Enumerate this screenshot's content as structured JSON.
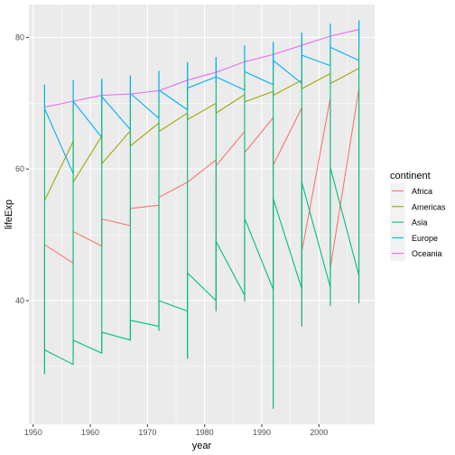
{
  "chart_data": {
    "type": "line",
    "xlabel": "year",
    "ylabel": "lifeExp",
    "xlim": [
      1949.25,
      2009.75
    ],
    "ylim": [
      21.2,
      85.0
    ],
    "x_ticks": [
      1950,
      1960,
      1970,
      1980,
      1990,
      2000
    ],
    "x_tick_labels": [
      "1950",
      "1960",
      "1970",
      "1980",
      "1990",
      "2000"
    ],
    "y_ticks": [
      40,
      60,
      80
    ],
    "y_tick_labels": [
      "40",
      "60",
      "80"
    ],
    "grid": true,
    "background": "#ebebeb",
    "legend": {
      "title": "continent",
      "position": "right",
      "entries": [
        "Africa",
        "Americas",
        "Asia",
        "Europe",
        "Oceania"
      ]
    },
    "series": [
      {
        "name": "Africa",
        "color": "#F8766D",
        "points": [
          [
            1952,
            32
          ],
          [
            1952,
            48.5
          ],
          [
            1957,
            45.7
          ],
          [
            1957,
            50.5
          ],
          [
            1962,
            48.3
          ],
          [
            1962,
            52.4
          ],
          [
            1967,
            51.4
          ],
          [
            1967,
            54
          ],
          [
            1972,
            54.5
          ],
          [
            1972,
            35.4
          ],
          [
            1972,
            55.7
          ],
          [
            1977,
            58
          ],
          [
            1982,
            61.4
          ],
          [
            1982,
            38.4
          ],
          [
            1982,
            60.5
          ],
          [
            1987,
            65.7
          ],
          [
            1987,
            39.9
          ],
          [
            1987,
            62.5
          ],
          [
            1992,
            67.8
          ],
          [
            1992,
            23.6
          ],
          [
            1992,
            60.6
          ],
          [
            1997,
            69.3
          ],
          [
            1997,
            36.1
          ],
          [
            1997,
            47.4
          ],
          [
            2002,
            70.8
          ],
          [
            2002,
            39.2
          ],
          [
            2002,
            45
          ],
          [
            2007,
            72.2
          ],
          [
            2007,
            39.6
          ]
        ]
      },
      {
        "name": "Americas",
        "color": "#A3A500",
        "points": [
          [
            1952,
            55.2
          ],
          [
            1957,
            64.2
          ],
          [
            1957,
            58
          ],
          [
            1962,
            65
          ],
          [
            1962,
            60.8
          ],
          [
            1967,
            65.8
          ],
          [
            1967,
            63.5
          ],
          [
            1972,
            67
          ],
          [
            1972,
            65.7
          ],
          [
            1977,
            68.5
          ],
          [
            1977,
            67.5
          ],
          [
            1982,
            70
          ],
          [
            1982,
            68.5
          ],
          [
            1987,
            71.3
          ],
          [
            1987,
            70.2
          ],
          [
            1992,
            71.8
          ],
          [
            1992,
            71.2
          ],
          [
            1997,
            73.5
          ],
          [
            1997,
            72.2
          ],
          [
            2002,
            74.5
          ],
          [
            2002,
            73
          ],
          [
            2007,
            75.3
          ]
        ]
      },
      {
        "name": "Asia",
        "color": "#00BF7D",
        "points": [
          [
            1952,
            28.8
          ],
          [
            1952,
            32.5
          ],
          [
            1957,
            30.3
          ],
          [
            1957,
            34
          ],
          [
            1962,
            32
          ],
          [
            1962,
            35.2
          ],
          [
            1967,
            34
          ],
          [
            1967,
            37
          ],
          [
            1972,
            36.1
          ],
          [
            1972,
            40
          ],
          [
            1977,
            38.4
          ],
          [
            1977,
            31.2
          ],
          [
            1977,
            44.2
          ],
          [
            1982,
            40
          ],
          [
            1982,
            49
          ],
          [
            1987,
            40.8
          ],
          [
            1987,
            52.5
          ],
          [
            1992,
            41.7
          ],
          [
            1992,
            55.5
          ],
          [
            1997,
            41.8
          ],
          [
            1997,
            58
          ],
          [
            2002,
            42
          ],
          [
            2002,
            60.2
          ],
          [
            2007,
            43.8
          ]
        ]
      },
      {
        "name": "Europe",
        "color": "#00B0F6",
        "points": [
          [
            1952,
            69.2
          ],
          [
            1957,
            59.3
          ],
          [
            1957,
            70.3
          ],
          [
            1962,
            64.8
          ],
          [
            1962,
            71
          ],
          [
            1967,
            66
          ],
          [
            1967,
            71.5
          ],
          [
            1972,
            67.7
          ],
          [
            1972,
            72
          ],
          [
            1977,
            69
          ],
          [
            1977,
            72.3
          ],
          [
            1982,
            74
          ],
          [
            1987,
            72
          ],
          [
            1987,
            74.8
          ],
          [
            1992,
            72.8
          ],
          [
            1992,
            76.5
          ],
          [
            1997,
            73
          ],
          [
            1997,
            77.3
          ],
          [
            2002,
            75.7
          ],
          [
            2002,
            78.5
          ],
          [
            2007,
            76.5
          ]
        ]
      },
      {
        "name": "Oceania",
        "color": "#E76BF3",
        "points": [
          [
            1952,
            69.4
          ],
          [
            1957,
            70.3
          ],
          [
            1962,
            71.2
          ],
          [
            1967,
            71.4
          ],
          [
            1972,
            71.9
          ],
          [
            1977,
            73.5
          ],
          [
            1982,
            74.7
          ],
          [
            1987,
            76.3
          ],
          [
            1992,
            77.4
          ],
          [
            1997,
            78.8
          ],
          [
            2002,
            80.2
          ],
          [
            2007,
            81.2
          ]
        ]
      }
    ],
    "vertical_spans": [
      {
        "x": 1952,
        "y": [
          29,
          72.8
        ]
      },
      {
        "x": 1957,
        "y": [
          31.5,
          73.5
        ]
      },
      {
        "x": 1962,
        "y": [
          32,
          73.7
        ]
      },
      {
        "x": 1967,
        "y": [
          34,
          74.2
        ]
      },
      {
        "x": 1972,
        "y": [
          35.5,
          74.9
        ]
      },
      {
        "x": 1977,
        "y": [
          31.2,
          76.2
        ]
      },
      {
        "x": 1982,
        "y": [
          38.4,
          77
        ]
      },
      {
        "x": 1987,
        "y": [
          39.9,
          78.8
        ]
      },
      {
        "x": 1992,
        "y": [
          23.6,
          79.3
        ]
      },
      {
        "x": 1997,
        "y": [
          36.1,
          80.7
        ]
      },
      {
        "x": 2002,
        "y": [
          39.2,
          82.1
        ]
      },
      {
        "x": 2007,
        "y": [
          39.6,
          82.6
        ]
      }
    ]
  }
}
